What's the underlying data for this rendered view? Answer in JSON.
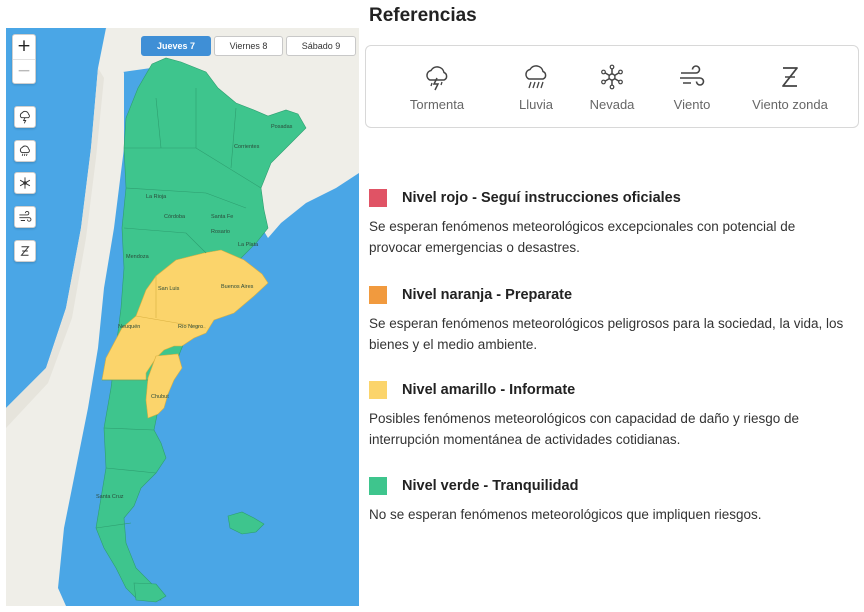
{
  "references": {
    "title": "Referencias",
    "icons": [
      {
        "icon": "storm-icon",
        "label": "Tormenta"
      },
      {
        "icon": "rain-icon",
        "label": "Lluvia"
      },
      {
        "icon": "snow-icon",
        "label": "Nevada"
      },
      {
        "icon": "wind-icon",
        "label": "Viento"
      },
      {
        "icon": "zonda-wind-icon",
        "label": "Viento zonda"
      }
    ]
  },
  "levels": [
    {
      "color": "#e05365",
      "name": "Nivel rojo - Seguí instrucciones oficiales",
      "description": "Se esperan fenómenos meteorológicos excepcionales con potencial de provocar emergencias o desastres."
    },
    {
      "color": "#f19a3e",
      "name": "Nivel naranja - Preparate",
      "description": "Se esperan fenómenos meteorológicos peligrosos para la sociedad, la vida, los bienes y el medio ambiente."
    },
    {
      "color": "#fbd46b",
      "name": "Nivel amarillo - Informate",
      "description": "Posibles fenómenos meteorológicos con capacidad de daño y riesgo de interrupción momentánea de actividades cotidianas."
    },
    {
      "color": "#3ec58d",
      "name": "Nivel verde - Tranquilidad",
      "description": "No se esperan fenómenos meteorológicos que impliquen riesgos."
    }
  ],
  "map": {
    "zoom_in": "+",
    "zoom_out": "−",
    "tabs": [
      {
        "label": "Jueves 7",
        "active": true
      },
      {
        "label": "Viernes 8",
        "active": false
      },
      {
        "label": "Sábado 9",
        "active": false
      }
    ],
    "layer_buttons": [
      "storm-layer-icon",
      "rain-layer-icon",
      "snow-layer-icon",
      "wind-layer-icon",
      "zonda-layer-icon"
    ],
    "colors": {
      "sea": "#4aa6e6",
      "land": "#efeee8",
      "green": "#3ec58d",
      "yellow": "#fbd46b"
    },
    "place_labels": [
      "San Luis",
      "Córdoba",
      "La Rioja",
      "Santa Fe",
      "Buenos Aires",
      "Neuquén",
      "Río Negro",
      "Chubut",
      "Santa Cruz",
      "La Plata",
      "Rosario",
      "Mendoza",
      "Corrientes",
      "Posadas"
    ]
  }
}
